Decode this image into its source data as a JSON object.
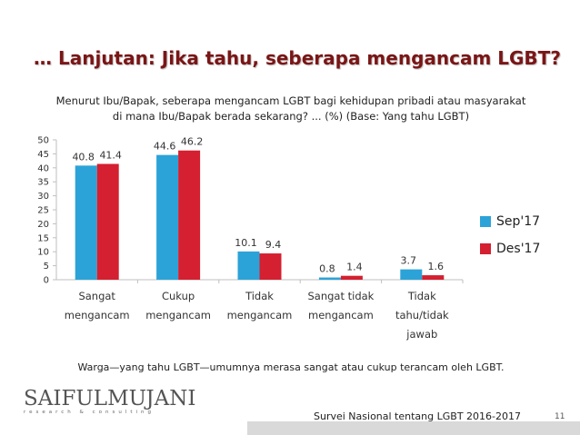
{
  "slide": {
    "title": "… Lanjutan: Jika tahu, seberapa mengancam LGBT?",
    "question_line1": "Menurut Ibu/Bapak, seberapa mengancam LGBT bagi kehidupan pribadi atau masyarakat",
    "question_line2": "di mana Ibu/Bapak berada sekarang? ... (%) (Base: Yang tahu LGBT)",
    "caption": "Warga—yang tahu LGBT—umumnya merasa sangat atau cukup terancam oleh LGBT.",
    "footer_survey": "Survei Nasional tentang LGBT 2016-2017",
    "page_number": "11"
  },
  "logo": {
    "name": "SAIFULMUJANI",
    "tagline": "research & consulting"
  },
  "colors": {
    "title": "#7a1616",
    "sep17": "#2ca3d8",
    "des17": "#d42030",
    "axis": "#bfbfbf"
  },
  "chart_data": {
    "type": "bar",
    "categories": [
      [
        "Sangat",
        "mengancam"
      ],
      [
        "Cukup",
        "mengancam"
      ],
      [
        "Tidak",
        "mengancam"
      ],
      [
        "Sangat tidak",
        "mengancam"
      ],
      [
        "Tidak",
        "tahu/tidak",
        "jawab"
      ]
    ],
    "series": [
      {
        "name": "Sep'17",
        "values": [
          40.8,
          44.6,
          10.1,
          0.8,
          3.7
        ],
        "labels": [
          "40.8",
          "44.6",
          "10.1",
          "0.8",
          "3.7"
        ]
      },
      {
        "name": "Des'17",
        "values": [
          41.4,
          46.2,
          9.4,
          1.4,
          1.6
        ],
        "labels": [
          "41.4",
          "46.2",
          "9.4",
          "1.4",
          "1.6"
        ]
      }
    ],
    "ylim": [
      0,
      50
    ],
    "yticks": [
      "0",
      "5",
      "10",
      "15",
      "20",
      "25",
      "30",
      "35",
      "40",
      "45",
      "50"
    ],
    "legend_position": "right",
    "grid": false
  }
}
